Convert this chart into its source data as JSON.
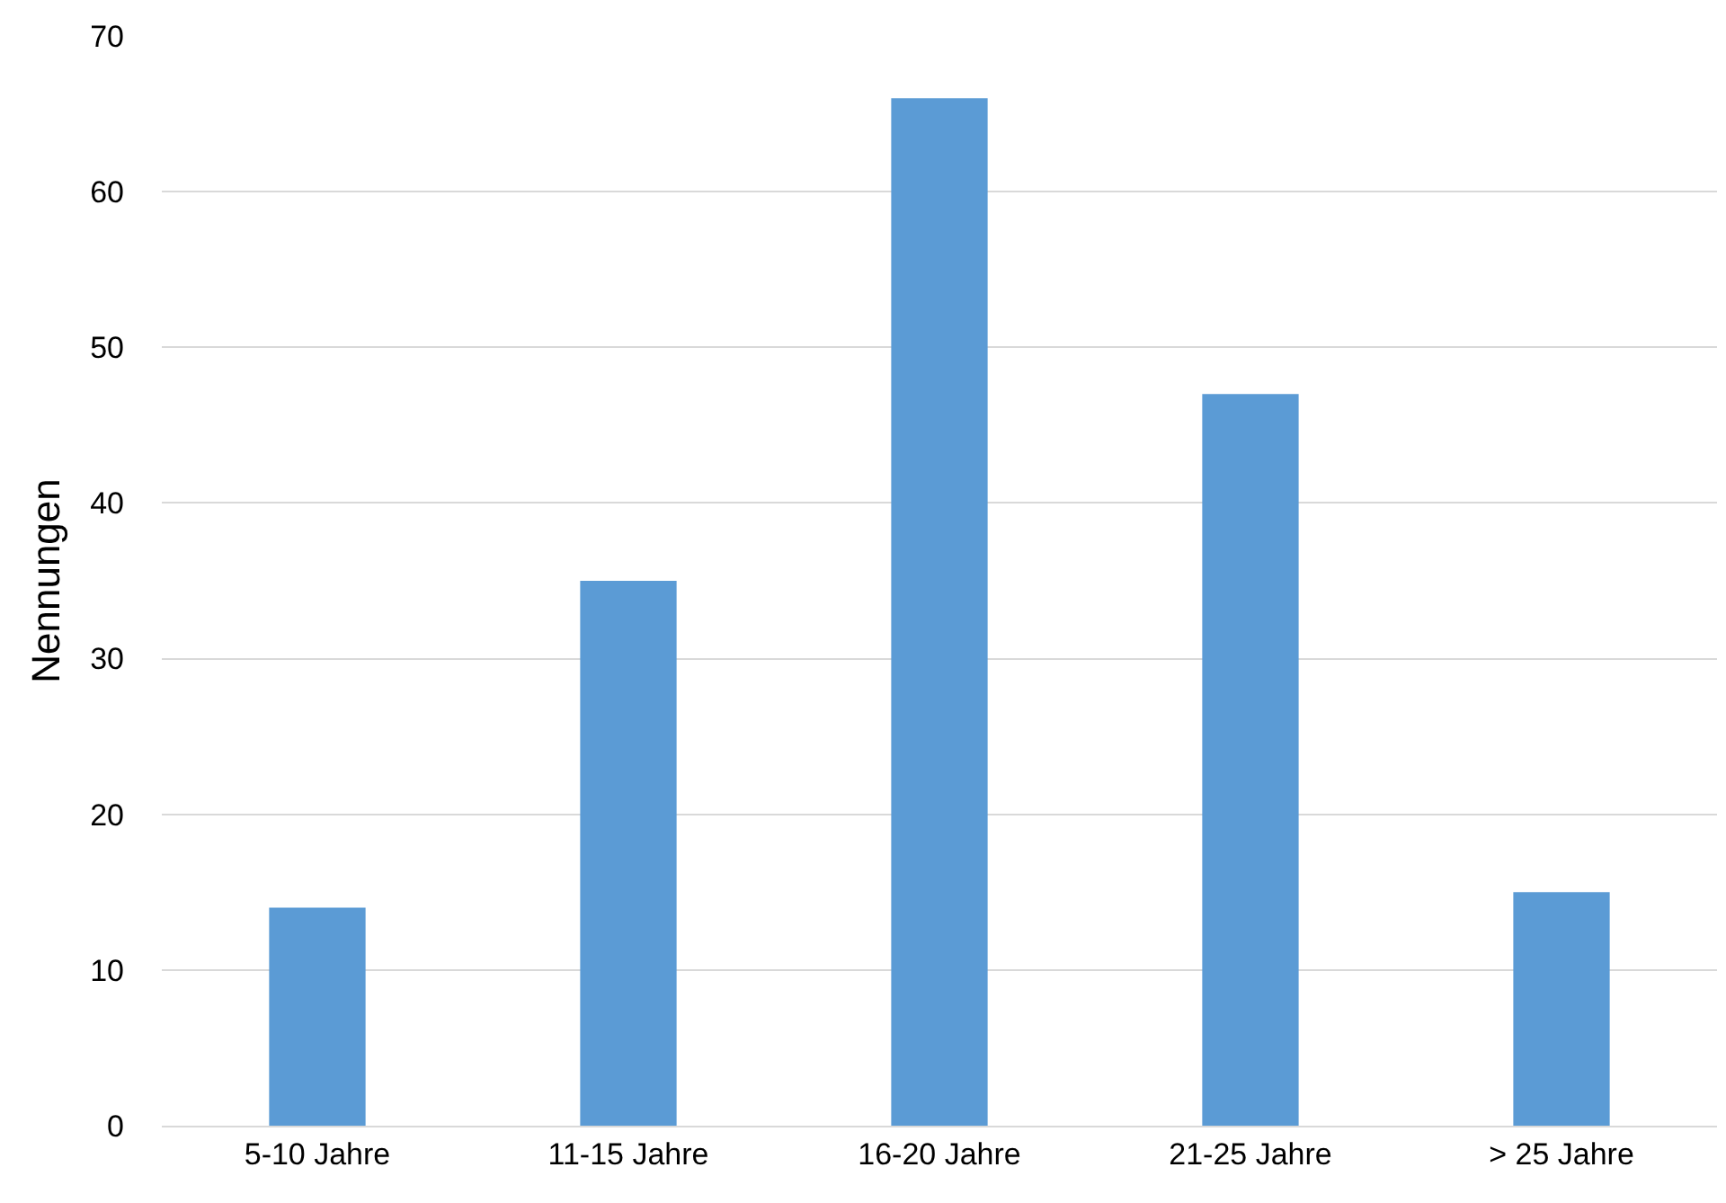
{
  "chart_data": {
    "type": "bar",
    "ylabel": "Nennungen",
    "categories": [
      "5-10 Jahre",
      "11-15 Jahre",
      "16-20 Jahre",
      "21-25 Jahre",
      "> 25 Jahre"
    ],
    "values": [
      14,
      35,
      66,
      47,
      15
    ],
    "color": "#5b9bd5",
    "ylim": [
      0,
      70
    ],
    "yticks": [
      0,
      10,
      20,
      30,
      40,
      50,
      60,
      70
    ],
    "grid": "y"
  }
}
